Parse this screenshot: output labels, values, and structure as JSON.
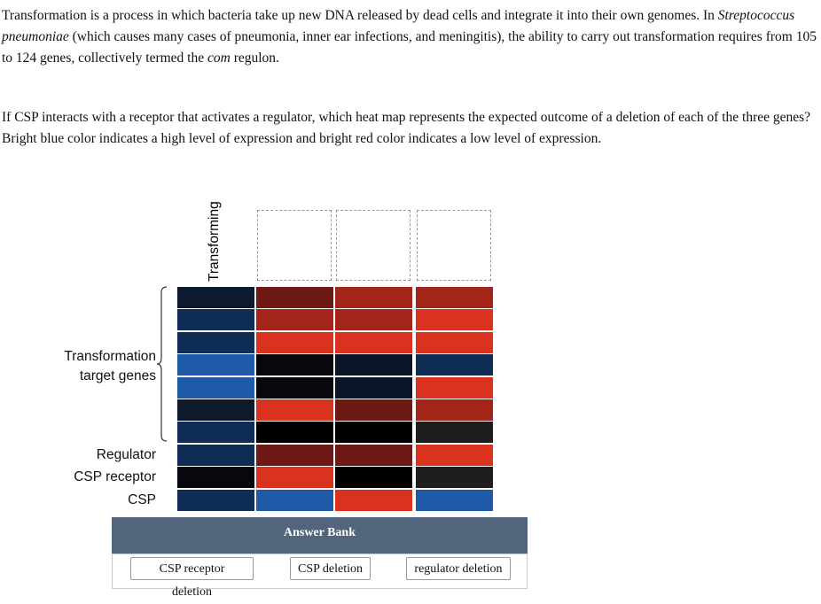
{
  "intro": {
    "segments": [
      {
        "text": "Transformation is a process in which bacteria take up new DNA released by dead cells and integrate it into their own genomes. In "
      },
      {
        "text": "Streptococcus pneumoniae",
        "italic": true
      },
      {
        "text": " (which causes many cases of pneumonia, inner ear infections, and meningitis), the ability to carry out transformation requires from 105 to 124 genes, collectively termed the "
      },
      {
        "text": "com",
        "italic": true
      },
      {
        "text": " regulon."
      }
    ]
  },
  "question": "If CSP interacts with a receptor that activates a regulator, which heat map represents the expected outcome of a deletion of each of the three genes? Bright blue color indicates a high level of expression and bright red color indicates a low level of expression.",
  "heatmap": {
    "column_label": "Transforming",
    "group_label": [
      "Transformation",
      "target genes"
    ],
    "row_labels": [
      null,
      null,
      null,
      null,
      null,
      null,
      null,
      "Regulator",
      "CSP receptor",
      "CSP"
    ],
    "colors": [
      [
        "#0d1a2e",
        "#6e1a14",
        "#a3251a",
        "#a3251a"
      ],
      [
        "#0f2d55",
        "#a3251a",
        "#a3251a",
        "#d9321f"
      ],
      [
        "#0f2d55",
        "#d9321f",
        "#d9321f",
        "#d9321f"
      ],
      [
        "#1e5aa8",
        "#06080d",
        "#0a1628",
        "#0f2d55"
      ],
      [
        "#1e5aa8",
        "#06080d",
        "#0a1628",
        "#d9321f"
      ],
      [
        "#0d1a2e",
        "#d9321f",
        "#6e1a14",
        "#a3251a"
      ],
      [
        "#0f2d55",
        "#000000",
        "#000000",
        "#1e1e1e"
      ],
      [
        "#0f2d55",
        "#6e1a14",
        "#6e1a14",
        "#d9321f"
      ],
      [
        "#06080d",
        "#d9321f",
        "#000000",
        "#1e1e1e"
      ],
      [
        "#0f2d55",
        "#1e5aa8",
        "#d9321f",
        "#1e5aa8"
      ]
    ]
  },
  "answer_bank": {
    "title": "Answer Bank",
    "options": [
      "CSP receptor deletion",
      "CSP deletion",
      "regulator deletion"
    ]
  }
}
